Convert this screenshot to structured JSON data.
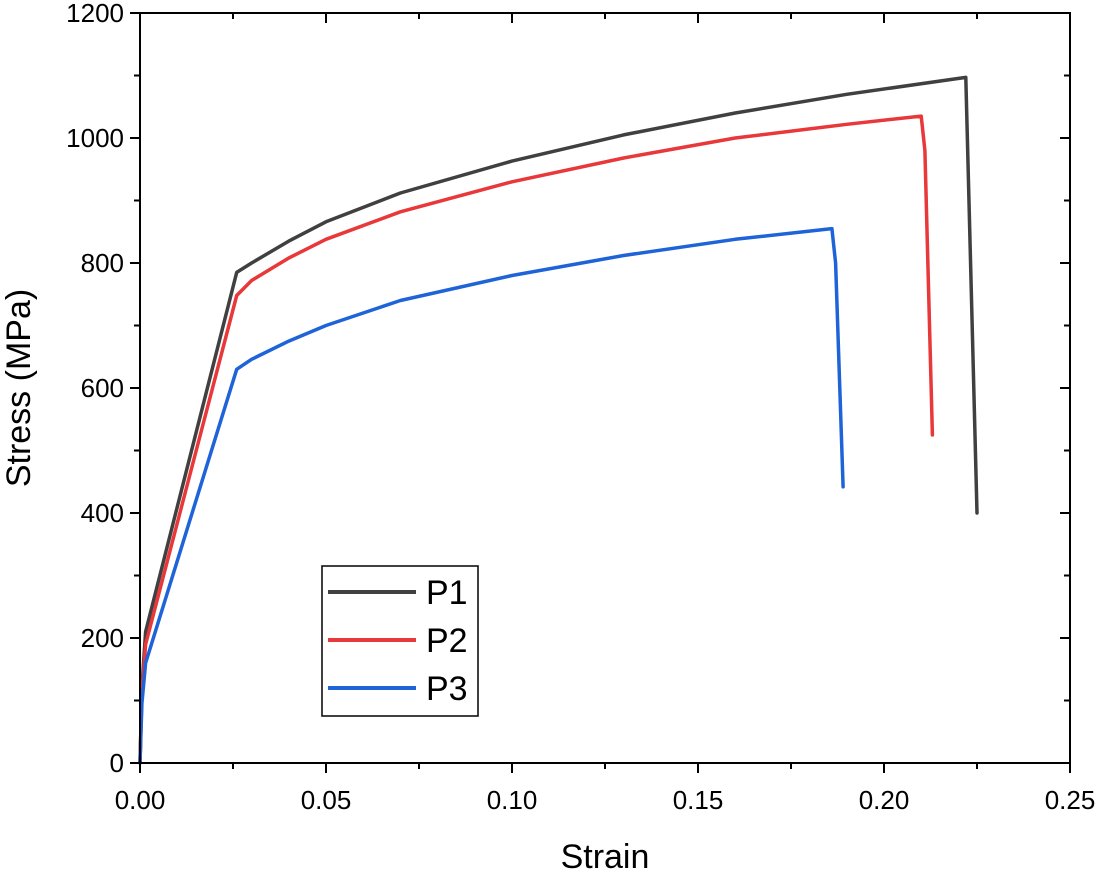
{
  "chart_data": {
    "type": "line",
    "title": "",
    "xlabel": "Strain",
    "ylabel": "Stress (MPa)",
    "xlim": [
      0,
      0.25
    ],
    "ylim": [
      0,
      1200
    ],
    "x_ticks": [
      "0.00",
      "0.05",
      "0.10",
      "0.15",
      "0.20",
      "0.25"
    ],
    "y_ticks": [
      "0",
      "200",
      "400",
      "600",
      "800",
      "1000",
      "1200"
    ],
    "grid": false,
    "legend_position": "bottom-left",
    "series": [
      {
        "name": "P1",
        "color": "#404040",
        "points": [
          [
            0,
            0
          ],
          [
            0.0005,
            120
          ],
          [
            0.0015,
            210
          ],
          [
            0.026,
            785
          ],
          [
            0.03,
            800
          ],
          [
            0.04,
            835
          ],
          [
            0.05,
            866
          ],
          [
            0.07,
            912
          ],
          [
            0.1,
            963
          ],
          [
            0.13,
            1005
          ],
          [
            0.16,
            1040
          ],
          [
            0.19,
            1070
          ],
          [
            0.222,
            1097
          ],
          [
            0.225,
            400
          ]
        ]
      },
      {
        "name": "P2",
        "color": "#e8383a",
        "points": [
          [
            0,
            0
          ],
          [
            0.0005,
            110
          ],
          [
            0.0015,
            190
          ],
          [
            0.026,
            748
          ],
          [
            0.03,
            772
          ],
          [
            0.04,
            808
          ],
          [
            0.05,
            838
          ],
          [
            0.07,
            882
          ],
          [
            0.1,
            930
          ],
          [
            0.13,
            968
          ],
          [
            0.16,
            1000
          ],
          [
            0.19,
            1022
          ],
          [
            0.21,
            1035
          ],
          [
            0.211,
            980
          ],
          [
            0.213,
            525
          ]
        ]
      },
      {
        "name": "P3",
        "color": "#1e64d8",
        "points": [
          [
            0,
            0
          ],
          [
            0.0005,
            95
          ],
          [
            0.0015,
            160
          ],
          [
            0.026,
            630
          ],
          [
            0.03,
            646
          ],
          [
            0.04,
            675
          ],
          [
            0.05,
            700
          ],
          [
            0.07,
            740
          ],
          [
            0.1,
            780
          ],
          [
            0.13,
            812
          ],
          [
            0.16,
            838
          ],
          [
            0.186,
            855
          ],
          [
            0.187,
            800
          ],
          [
            0.189,
            442
          ]
        ]
      }
    ]
  }
}
